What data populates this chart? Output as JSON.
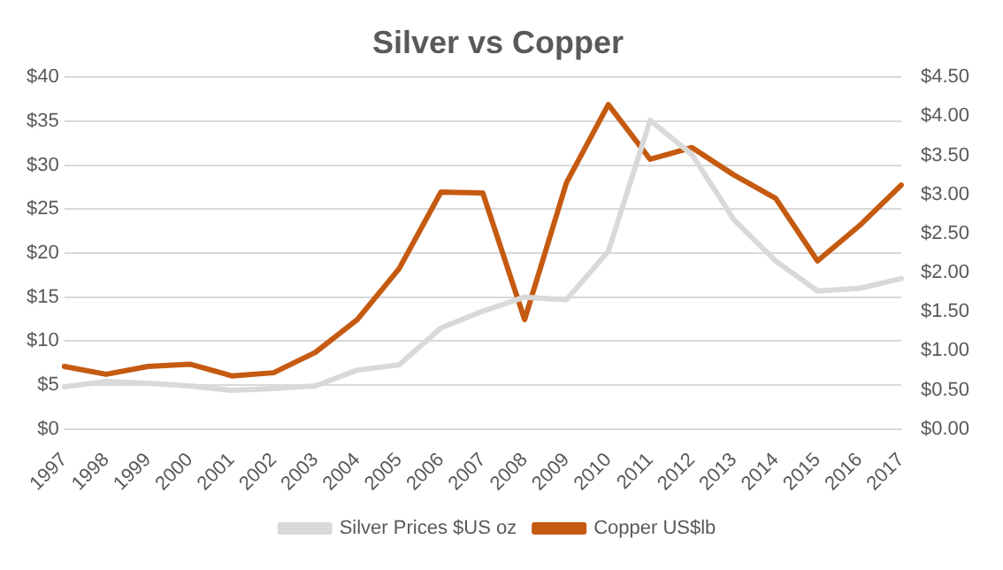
{
  "chart_data": {
    "type": "line",
    "title": "Silver vs Copper",
    "categories": [
      "1997",
      "1998",
      "1999",
      "2000",
      "2001",
      "2002",
      "2003",
      "2004",
      "2005",
      "2006",
      "2007",
      "2008",
      "2009",
      "2010",
      "2011",
      "2012",
      "2013",
      "2014",
      "2015",
      "2016",
      "2017"
    ],
    "series": [
      {
        "name": "Silver Prices $US oz",
        "color": "#d9d9d9",
        "values": [
          4.8,
          5.4,
          5.2,
          4.9,
          4.4,
          4.6,
          4.9,
          6.7,
          7.3,
          11.5,
          13.4,
          15.0,
          14.7,
          20.2,
          35.1,
          31.2,
          23.8,
          19.1,
          15.7,
          16.0,
          17.1
        ]
      },
      {
        "name": "Copper US$lb",
        "color": "#c55a11",
        "axis": "y2",
        "values": [
          0.8,
          0.7,
          0.8,
          0.83,
          0.68,
          0.72,
          0.98,
          1.4,
          2.05,
          3.03,
          3.02,
          1.4,
          3.15,
          4.15,
          3.45,
          3.6,
          3.25,
          2.95,
          2.15,
          2.6,
          3.12
        ]
      }
    ],
    "ylim": [
      0,
      40
    ],
    "yticks": [
      {
        "value": 0,
        "label": "$0"
      },
      {
        "value": 5,
        "label": "$5"
      },
      {
        "value": 10,
        "label": "$10"
      },
      {
        "value": 15,
        "label": "$15"
      },
      {
        "value": 20,
        "label": "$20"
      },
      {
        "value": 25,
        "label": "$25"
      },
      {
        "value": 30,
        "label": "$30"
      },
      {
        "value": 35,
        "label": "$35"
      },
      {
        "value": 40,
        "label": "$40"
      }
    ],
    "y2lim": [
      0,
      4.5
    ],
    "y2ticks": [
      {
        "value": 0,
        "label": "$0.00"
      },
      {
        "value": 0.5,
        "label": "$0.50"
      },
      {
        "value": 1,
        "label": "$1.00"
      },
      {
        "value": 1.5,
        "label": "$1.50"
      },
      {
        "value": 2,
        "label": "$2.00"
      },
      {
        "value": 2.5,
        "label": "$2.50"
      },
      {
        "value": 3,
        "label": "$3.00"
      },
      {
        "value": 3.5,
        "label": "$3.50"
      },
      {
        "value": 4,
        "label": "$4.00"
      },
      {
        "value": 4.5,
        "label": "$4.50"
      }
    ],
    "grid": "y",
    "legend": "bottom",
    "marker": "none",
    "line_style": "solid"
  }
}
